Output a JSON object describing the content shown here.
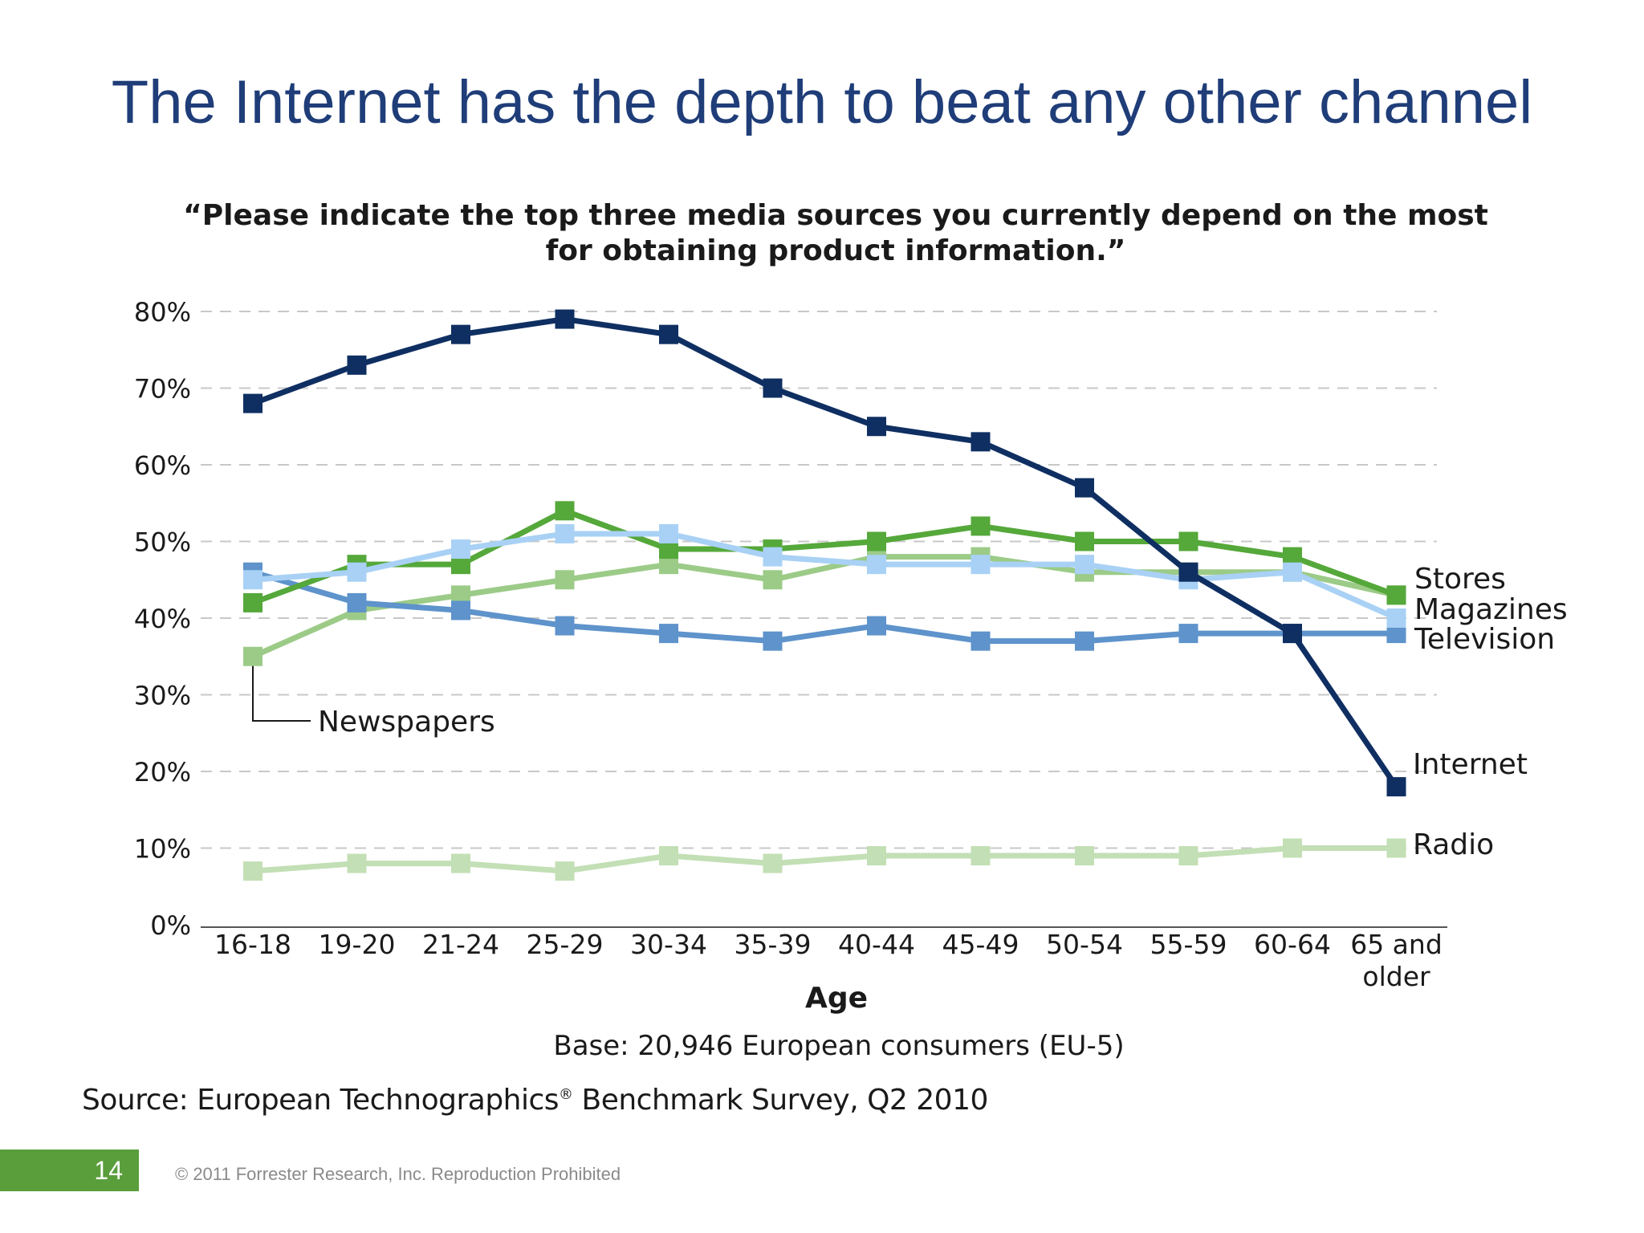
{
  "slide": {
    "title": "The Internet has the depth to beat any other channel",
    "page_number": "14",
    "copyright": "© 2011 Forrester Research, Inc. Reproduction Prohibited"
  },
  "notes": {
    "base": "Base: 20,946 European consumers (EU-5)",
    "source_pre": "Source: European Technographics",
    "source_mark": "®",
    "source_post": " Benchmark Survey, Q2 2010"
  },
  "chart_data": {
    "type": "line",
    "title_line1": "“Please indicate the top three media sources you currently depend on the most",
    "title_line2": "for obtaining product information.”",
    "xlabel": "Age",
    "ylabel": "",
    "ylim": [
      0,
      80
    ],
    "y_ticks": [
      "0%",
      "10%",
      "20%",
      "30%",
      "40%",
      "50%",
      "60%",
      "70%",
      "80%"
    ],
    "grid": true,
    "legend_placement": "direct labels at right end of lines",
    "categories": [
      "16-18",
      "19-20",
      "21-24",
      "25-29",
      "30-34",
      "35-39",
      "40-44",
      "45-49",
      "50-54",
      "55-59",
      "60-64",
      "65 and older"
    ],
    "category_labels": [
      [
        "16-18"
      ],
      [
        "19-20"
      ],
      [
        "21-24"
      ],
      [
        "25-29"
      ],
      [
        "30-34"
      ],
      [
        "35-39"
      ],
      [
        "40-44"
      ],
      [
        "45-49"
      ],
      [
        "50-54"
      ],
      [
        "55-59"
      ],
      [
        "60-64"
      ],
      [
        "65 and",
        "older"
      ]
    ],
    "series": [
      {
        "name": "Radio",
        "color": "#c3dfb5",
        "values": [
          7,
          8,
          8,
          7,
          9,
          8,
          9,
          9,
          9,
          9,
          10,
          10
        ]
      },
      {
        "name": "Newspapers",
        "color": "#9ccb88",
        "values": [
          35,
          41,
          43,
          45,
          47,
          45,
          48,
          48,
          46,
          46,
          46,
          43
        ]
      },
      {
        "name": "Television",
        "color": "#5e93cb",
        "values": [
          46,
          42,
          41,
          39,
          38,
          37,
          39,
          37,
          37,
          38,
          38,
          38
        ]
      },
      {
        "name": "Stores",
        "color": "#55a83a",
        "values": [
          42,
          47,
          47,
          54,
          49,
          49,
          50,
          52,
          50,
          50,
          48,
          43
        ]
      },
      {
        "name": "Magazines",
        "color": "#a9d1f5",
        "values": [
          45,
          46,
          49,
          51,
          51,
          48,
          47,
          47,
          47,
          45,
          46,
          40
        ]
      },
      {
        "name": "Internet",
        "color": "#0f2f62",
        "values": [
          68,
          73,
          77,
          79,
          77,
          70,
          65,
          63,
          57,
          46,
          38,
          18
        ]
      }
    ]
  }
}
